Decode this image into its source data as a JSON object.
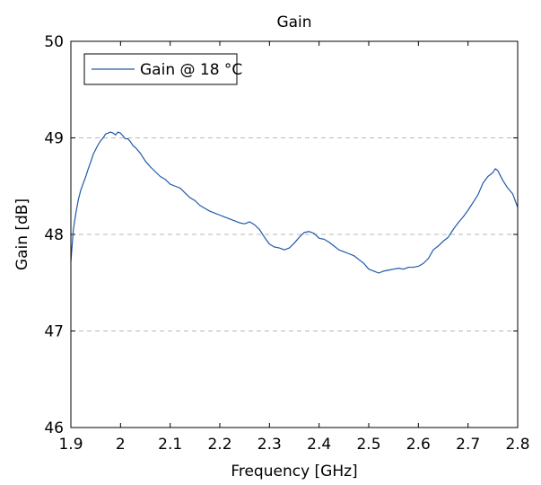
{
  "chart_data": {
    "type": "line",
    "title": "Gain",
    "xlabel": "Frequency [GHz]",
    "ylabel": "Gain [dB]",
    "xlim": [
      1.9,
      2.8
    ],
    "ylim": [
      46,
      50
    ],
    "xticks": [
      1.9,
      2.0,
      2.1,
      2.2,
      2.3,
      2.4,
      2.5,
      2.6,
      2.7,
      2.8
    ],
    "xtick_labels": [
      "1.9",
      "2",
      "2.1",
      "2.2",
      "2.3",
      "2.4",
      "2.5",
      "2.6",
      "2.7",
      "2.8"
    ],
    "yticks": [
      46,
      47,
      48,
      49,
      50
    ],
    "ytick_labels": [
      "46",
      "47",
      "48",
      "49",
      "50"
    ],
    "grid": "horizontal dashed",
    "legend_position": "top-left",
    "series": [
      {
        "name": "Gain @ 18 °C",
        "color": "#1f5aa6",
        "x": [
          1.9,
          1.905,
          1.91,
          1.915,
          1.92,
          1.925,
          1.93,
          1.935,
          1.94,
          1.945,
          1.95,
          1.955,
          1.96,
          1.965,
          1.97,
          1.975,
          1.98,
          1.985,
          1.99,
          1.995,
          2.0,
          2.005,
          2.01,
          2.015,
          2.02,
          2.025,
          2.03,
          2.04,
          2.05,
          2.06,
          2.07,
          2.08,
          2.09,
          2.1,
          2.11,
          2.12,
          2.13,
          2.14,
          2.15,
          2.16,
          2.17,
          2.18,
          2.19,
          2.2,
          2.21,
          2.22,
          2.23,
          2.24,
          2.25,
          2.26,
          2.27,
          2.28,
          2.29,
          2.3,
          2.31,
          2.32,
          2.33,
          2.34,
          2.35,
          2.36,
          2.37,
          2.38,
          2.39,
          2.4,
          2.41,
          2.42,
          2.43,
          2.44,
          2.45,
          2.46,
          2.47,
          2.48,
          2.49,
          2.5,
          2.51,
          2.52,
          2.53,
          2.54,
          2.55,
          2.56,
          2.57,
          2.58,
          2.59,
          2.6,
          2.61,
          2.62,
          2.63,
          2.64,
          2.65,
          2.66,
          2.67,
          2.68,
          2.69,
          2.7,
          2.71,
          2.72,
          2.73,
          2.74,
          2.75,
          2.755,
          2.76,
          2.77,
          2.78,
          2.79,
          2.8
        ],
        "y": [
          47.72,
          48.05,
          48.22,
          48.36,
          48.46,
          48.53,
          48.6,
          48.68,
          48.75,
          48.83,
          48.88,
          48.93,
          48.97,
          49.0,
          49.04,
          49.05,
          49.06,
          49.05,
          49.03,
          49.06,
          49.05,
          49.02,
          48.99,
          48.99,
          48.96,
          48.92,
          48.9,
          48.84,
          48.76,
          48.7,
          48.65,
          48.6,
          48.57,
          48.52,
          48.5,
          48.48,
          48.43,
          48.38,
          48.35,
          48.3,
          48.27,
          48.24,
          48.22,
          48.2,
          48.18,
          48.16,
          48.14,
          48.12,
          48.11,
          48.13,
          48.1,
          48.05,
          47.97,
          47.9,
          47.87,
          47.86,
          47.84,
          47.86,
          47.91,
          47.97,
          48.02,
          48.03,
          48.01,
          47.96,
          47.95,
          47.92,
          47.88,
          47.84,
          47.82,
          47.8,
          47.78,
          47.74,
          47.7,
          47.64,
          47.62,
          47.6,
          47.62,
          47.63,
          47.64,
          47.65,
          47.64,
          47.66,
          47.66,
          47.67,
          47.7,
          47.75,
          47.84,
          47.88,
          47.93,
          47.97,
          48.05,
          48.12,
          48.18,
          48.25,
          48.33,
          48.41,
          48.53,
          48.6,
          48.64,
          48.68,
          48.66,
          48.56,
          48.48,
          48.42,
          48.28
        ]
      }
    ]
  }
}
